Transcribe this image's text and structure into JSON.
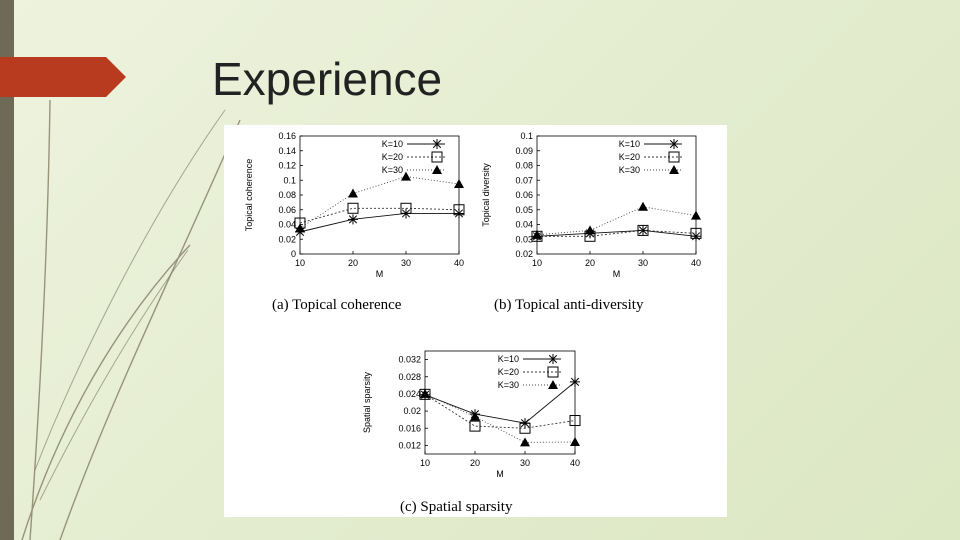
{
  "slide": {
    "title": "Experience",
    "colors": {
      "band": "#6f6a55",
      "accent": "#b83a1f",
      "background": "#e6edd2"
    }
  },
  "chart_data": [
    {
      "type": "line",
      "caption": "(a) Topical coherence",
      "xlabel": "M",
      "ylabel": "Topical coherence",
      "x": [
        10,
        20,
        30,
        40
      ],
      "ylim": [
        0,
        0.16
      ],
      "yticks": [
        "0",
        "0.02",
        "0.04",
        "0.06",
        "0.08",
        "0.1",
        "0.12",
        "0.14",
        "0.16"
      ],
      "xticks": [
        "10",
        "20",
        "30",
        "40"
      ],
      "legend_position": "top-right",
      "series": [
        {
          "name": "K=10",
          "marker": "star",
          "values": [
            0.03,
            0.047,
            0.055,
            0.055
          ]
        },
        {
          "name": "K=20",
          "marker": "square",
          "values": [
            0.042,
            0.062,
            0.062,
            0.06
          ]
        },
        {
          "name": "K=30",
          "marker": "triangle",
          "values": [
            0.035,
            0.082,
            0.105,
            0.095
          ]
        }
      ]
    },
    {
      "type": "line",
      "caption": "(b) Topical anti-diversity",
      "xlabel": "M",
      "ylabel": "Topical diversity",
      "x": [
        10,
        20,
        30,
        40
      ],
      "ylim": [
        0.02,
        0.1
      ],
      "yticks": [
        "0.02",
        "0.03",
        "0.04",
        "0.05",
        "0.06",
        "0.07",
        "0.08",
        "0.09",
        "0.1"
      ],
      "xticks": [
        "10",
        "20",
        "30",
        "40"
      ],
      "legend_position": "top-right",
      "series": [
        {
          "name": "K=10",
          "marker": "star",
          "values": [
            0.032,
            0.034,
            0.036,
            0.032
          ]
        },
        {
          "name": "K=20",
          "marker": "square",
          "values": [
            0.032,
            0.032,
            0.036,
            0.034
          ]
        },
        {
          "name": "K=30",
          "marker": "triangle",
          "values": [
            0.033,
            0.036,
            0.052,
            0.046
          ]
        }
      ]
    },
    {
      "type": "line",
      "caption": "(c) Spatial sparsity",
      "xlabel": "M",
      "ylabel": "Spatial sparsity",
      "x": [
        10,
        20,
        30,
        40
      ],
      "ylim": [
        0.01,
        0.034
      ],
      "yticks": [
        "0.012",
        "0.016",
        "0.02",
        "0.024",
        "0.028",
        "0.032"
      ],
      "xticks": [
        "10",
        "20",
        "30",
        "40"
      ],
      "legend_position": "top-right",
      "series": [
        {
          "name": "K=10",
          "marker": "star",
          "values": [
            0.0238,
            0.0193,
            0.0172,
            0.0268
          ]
        },
        {
          "name": "K=20",
          "marker": "square",
          "values": [
            0.0239,
            0.0165,
            0.016,
            0.0178
          ]
        },
        {
          "name": "K=30",
          "marker": "triangle",
          "values": [
            0.024,
            0.0187,
            0.0127,
            0.0128
          ]
        }
      ]
    }
  ]
}
